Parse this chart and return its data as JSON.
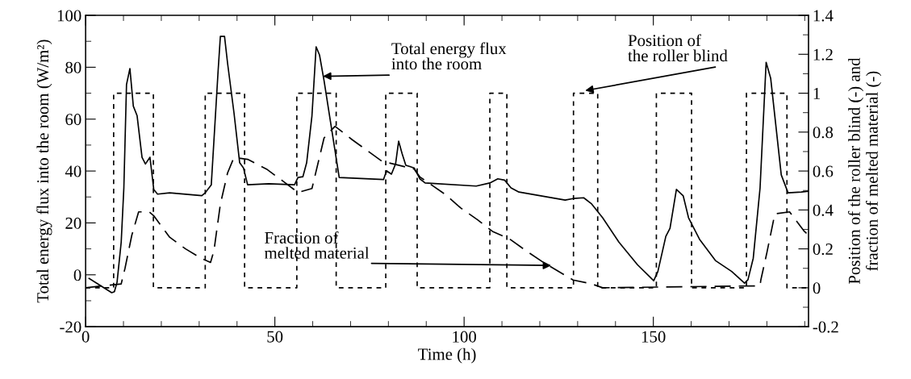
{
  "chart_data": {
    "type": "line",
    "xlabel": "Time (h)",
    "ylabel": "Total energy flux into the room (W/m²)",
    "y2label": "Position of the roller blind (-) and\nfraction of melted material (-)",
    "xlim": [
      0,
      191
    ],
    "xticks": [
      0,
      50,
      100,
      150
    ],
    "ylim": [
      -20,
      100
    ],
    "yticks": [
      -20,
      0,
      20,
      40,
      60,
      80,
      100
    ],
    "y2lim": [
      -0.2,
      1.4
    ],
    "y2ticks": [
      {
        "value": -0.2,
        "label": "-0.2"
      },
      0,
      0.2,
      0.4,
      0.6,
      0.8,
      1,
      1.2,
      1.4
    ],
    "grid": false,
    "legend": false,
    "marker": "none",
    "series": [
      {
        "color": "#000000",
        "line_style": "solid",
        "x": [
          0.9,
          6.9,
          7.6,
          8.3,
          9.4,
          10.1,
          10.8,
          11.7,
          12.6,
          13.6,
          14.9,
          15.8,
          17,
          18,
          19,
          22.2,
          30.7,
          31.6,
          33.2,
          35,
          35.6,
          36.7,
          37.5,
          39.2,
          40.7,
          41.7,
          42.8,
          48.4,
          55.2,
          56.1,
          57.4,
          58.4,
          59.8,
          60.9,
          61.8,
          63,
          67,
          78.7,
          79.5,
          80.8,
          81.9,
          82.7,
          83.6,
          84.6,
          86.8,
          88.3,
          89.7,
          103.2,
          106.8,
          108.9,
          110.7,
          112.4,
          114.5,
          126.7,
          128.8,
          131.6,
          133.7,
          136.6,
          140.9,
          145.8,
          150.1,
          151.2,
          153.3,
          154.4,
          156.1,
          157.9,
          159.3,
          162.2,
          166.4,
          170.7,
          174.1,
          175,
          176.4,
          178.2,
          179.8,
          181,
          183.8,
          185.6,
          189.1,
          191
        ],
        "values": [
          -1.4,
          -6.9,
          -6.5,
          -2.9,
          12.6,
          33.5,
          73.3,
          79.5,
          65,
          61.3,
          45.3,
          42.7,
          45.3,
          32.9,
          31.1,
          31.6,
          30.5,
          31.6,
          34.7,
          78.5,
          91.9,
          91.9,
          81.6,
          62.4,
          43.2,
          41.2,
          34.7,
          35.1,
          34.7,
          37.5,
          37.8,
          43.2,
          61.3,
          87.9,
          84.7,
          74.8,
          37.5,
          36.7,
          40.1,
          38.8,
          42.8,
          51.5,
          46.8,
          42.2,
          41.2,
          37,
          35.4,
          34.2,
          35.4,
          37,
          36.5,
          33.5,
          31.9,
          28.8,
          29.4,
          29.7,
          27.3,
          22,
          12.6,
          3.9,
          -2.3,
          1.3,
          14.8,
          17.9,
          32.9,
          30.4,
          22,
          13.7,
          5.5,
          1.3,
          -3.2,
          -1.9,
          6.4,
          33.5,
          81.9,
          75.8,
          38.5,
          31.6,
          31.9,
          32.2
        ]
      },
      {
        "color": "#000000",
        "line_style": "dashed",
        "axis": "y2",
        "x": [
          0,
          7.4,
          7.4,
          17.9,
          17.9,
          31.6,
          31.6,
          42,
          42,
          55.8,
          55.8,
          66.2,
          66.2,
          79.3,
          79.3,
          87.6,
          87.6,
          106.8,
          106.8,
          111.3,
          111.3,
          128.9,
          128.9,
          135.3,
          135.3,
          150.8,
          150.8,
          160.1,
          160.1,
          174.6,
          174.6,
          185.3,
          185.3,
          191
        ],
        "values": [
          0,
          0,
          1,
          1,
          0,
          0,
          1,
          1,
          0,
          0,
          1,
          1,
          0,
          0,
          1,
          1,
          0,
          0,
          1,
          1,
          0,
          0,
          1,
          1,
          0,
          0,
          1,
          1,
          0,
          0,
          1,
          1,
          0,
          0
        ]
      },
      {
        "color": "#000000",
        "line_style": "dashed",
        "axis": "y2",
        "x": [
          0,
          9.4,
          10.4,
          12.2,
          14,
          16.8,
          18,
          22.2,
          26.4,
          30.7,
          33,
          33.9,
          35.6,
          37.5,
          39.2,
          42.8,
          47.8,
          52,
          56.1,
          59.8,
          63,
          65.9,
          70.5,
          78.3,
          82.7,
          86.8,
          88.3,
          95,
          99.1,
          103.5,
          107.5,
          112.1,
          116.4,
          121,
          128.8,
          133.7,
          136.6,
          178.2,
          178.4,
          180,
          182.1,
          186,
          189.9,
          191
        ],
        "values": [
          0,
          0.02,
          0.1,
          0.27,
          0.39,
          0.39,
          0.37,
          0.26,
          0.2,
          0.15,
          0.13,
          0.19,
          0.43,
          0.59,
          0.67,
          0.66,
          0.61,
          0.55,
          0.49,
          0.51,
          0.77,
          0.83,
          0.76,
          0.65,
          0.63,
          0.61,
          0.57,
          0.48,
          0.41,
          0.35,
          0.29,
          0.25,
          0.19,
          0.13,
          0.04,
          0.02,
          0,
          0.01,
          0.04,
          0.18,
          0.38,
          0.39,
          0.29,
          0.27
        ]
      }
    ],
    "annotations": [
      {
        "text": "Total energy flux\ninto the room",
        "x": 62.7,
        "y": 76.5
      },
      {
        "text": "Position of\nthe roller blind",
        "x": 132,
        "y": 71
      },
      {
        "text": "Fraction of\nmelted material",
        "x": 123,
        "y": 3.6
      }
    ]
  }
}
